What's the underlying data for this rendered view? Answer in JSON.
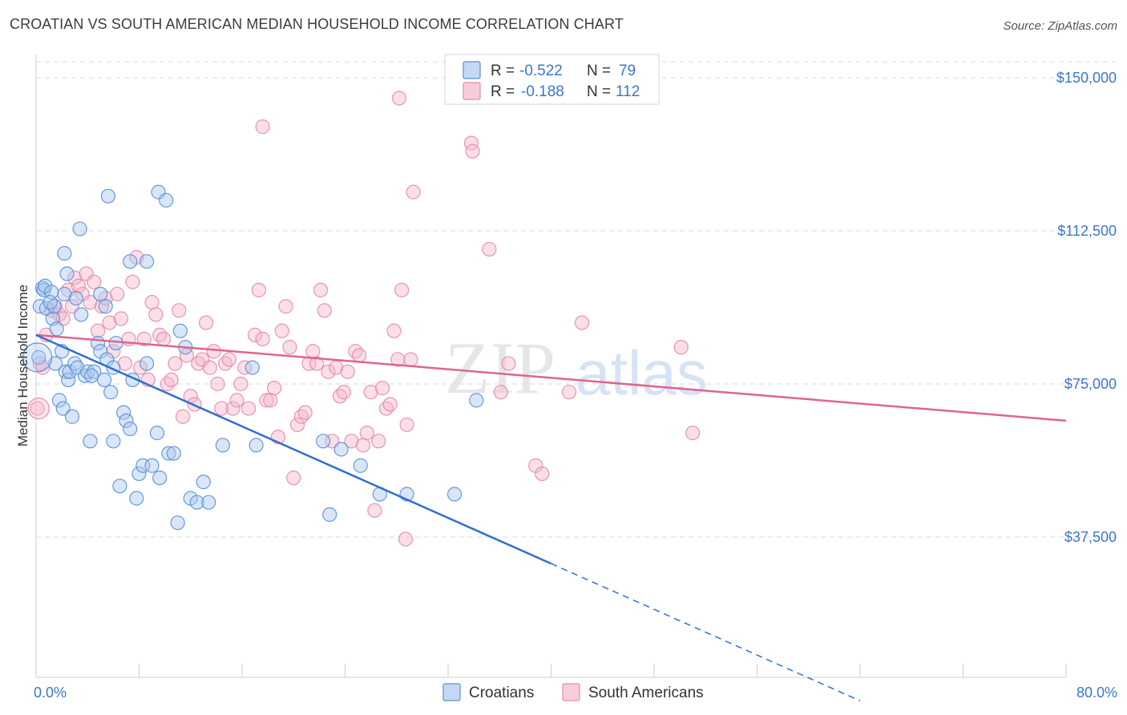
{
  "title": "CROATIAN VS SOUTH AMERICAN MEDIAN HOUSEHOLD INCOME CORRELATION CHART",
  "source": "Source: ZipAtlas.com",
  "watermark": {
    "zip": "ZIP",
    "atlas": "atlas"
  },
  "colors": {
    "croatians_fill": "#a9c8f0",
    "croatians_stroke": "#5a8fd6",
    "croatians_line": "#2f6fd0",
    "south_fill": "#f5b8cc",
    "south_stroke": "#e48aa8",
    "south_line": "#e0648f",
    "tick_text": "#3a78c9",
    "grid": "#d9d9d9"
  },
  "legend_top": {
    "r_label": "R =",
    "n_label": "N =",
    "rows": [
      {
        "r": "-0.522",
        "n": "79"
      },
      {
        "r": "-0.188",
        "n": "112"
      }
    ]
  },
  "chart_data": {
    "type": "scatter",
    "title": "CROATIAN VS SOUTH AMERICAN MEDIAN HOUSEHOLD INCOME CORRELATION CHART",
    "xlabel": "",
    "ylabel": "Median Household Income",
    "xlim": [
      0,
      80
    ],
    "ylim": [
      0,
      155000
    ],
    "x_tick_labels": [
      "0.0%",
      "80.0%"
    ],
    "y_ticks": [
      37500,
      75000,
      112500,
      150000
    ],
    "y_tick_labels": [
      "$37,500",
      "$75,000",
      "$112,500",
      "$150,000"
    ],
    "grid": true,
    "legend_position": "top-center",
    "series": [
      {
        "name": "Croatians",
        "r": -0.522,
        "n": 79,
        "trend": {
          "x0": 0,
          "y0": 87000,
          "x1": 40,
          "y1": 31000,
          "dash_to_x": 64,
          "dash_to_y": -2600
        },
        "points": [
          [
            0.2,
            81500
          ],
          [
            0.3,
            94000
          ],
          [
            0.5,
            98500
          ],
          [
            0.6,
            98000
          ],
          [
            0.7,
            99000
          ],
          [
            0.8,
            93500
          ],
          [
            1.2,
            97500
          ],
          [
            1.3,
            91000
          ],
          [
            1.5,
            80000
          ],
          [
            1.6,
            88500
          ],
          [
            1.8,
            71000
          ],
          [
            2.0,
            83000
          ],
          [
            2.1,
            69000
          ],
          [
            2.3,
            78000
          ],
          [
            2.5,
            76000
          ],
          [
            2.6,
            78000
          ],
          [
            2.8,
            67000
          ],
          [
            3.0,
            80000
          ],
          [
            3.2,
            79000
          ],
          [
            3.5,
            92000
          ],
          [
            3.8,
            77000
          ],
          [
            4.0,
            78000
          ],
          [
            4.2,
            61000
          ],
          [
            4.5,
            78000
          ],
          [
            4.8,
            85000
          ],
          [
            5.0,
            83000
          ],
          [
            5.3,
            76000
          ],
          [
            5.5,
            81000
          ],
          [
            5.8,
            73000
          ],
          [
            6.0,
            61000
          ],
          [
            6.2,
            85000
          ],
          [
            6.5,
            50000
          ],
          [
            6.8,
            68000
          ],
          [
            7.0,
            66000
          ],
          [
            7.3,
            64000
          ],
          [
            7.5,
            76000
          ],
          [
            7.8,
            47000
          ],
          [
            8.0,
            53000
          ],
          [
            8.3,
            55000
          ],
          [
            8.6,
            80000
          ],
          [
            9.0,
            55000
          ],
          [
            9.4,
            63000
          ],
          [
            9.6,
            52000
          ],
          [
            10.3,
            58000
          ],
          [
            10.7,
            58000
          ],
          [
            11.0,
            41000
          ],
          [
            11.2,
            88000
          ],
          [
            11.6,
            84000
          ],
          [
            12.0,
            47000
          ],
          [
            12.5,
            46000
          ],
          [
            13.0,
            51000
          ],
          [
            13.4,
            46000
          ],
          [
            14.5,
            60000
          ],
          [
            16.8,
            79000
          ],
          [
            17.1,
            60000
          ],
          [
            22.3,
            61000
          ],
          [
            22.8,
            43000
          ],
          [
            23.7,
            59000
          ],
          [
            25.2,
            55000
          ],
          [
            26.7,
            48000
          ],
          [
            28.8,
            48000
          ],
          [
            32.5,
            48000
          ],
          [
            34.2,
            71000
          ],
          [
            7.3,
            105000
          ],
          [
            8.6,
            105000
          ],
          [
            9.5,
            122000
          ],
          [
            10.1,
            120000
          ],
          [
            5.6,
            121000
          ],
          [
            3.4,
            113000
          ],
          [
            2.2,
            107000
          ],
          [
            2.4,
            102000
          ],
          [
            5.0,
            97000
          ],
          [
            3.1,
            96000
          ],
          [
            5.4,
            94000
          ],
          [
            1.4,
            94000
          ],
          [
            2.2,
            97000
          ],
          [
            1.1,
            95000
          ],
          [
            6.0,
            79000
          ],
          [
            4.3,
            77000
          ]
        ]
      },
      {
        "name": "South Americans",
        "r": -0.188,
        "n": 112,
        "trend": {
          "x0": 0,
          "y0": 87000,
          "x1": 80,
          "y1": 66000
        },
        "points": [
          [
            0.1,
            69000
          ],
          [
            0.3,
            80000
          ],
          [
            0.5,
            79000
          ],
          [
            0.8,
            87000
          ],
          [
            1.2,
            93000
          ],
          [
            1.5,
            94000
          ],
          [
            1.8,
            92000
          ],
          [
            2.1,
            91000
          ],
          [
            2.5,
            98000
          ],
          [
            2.8,
            94000
          ],
          [
            3.0,
            101000
          ],
          [
            3.3,
            99000
          ],
          [
            3.6,
            97000
          ],
          [
            3.9,
            102000
          ],
          [
            4.2,
            95000
          ],
          [
            4.5,
            100000
          ],
          [
            4.8,
            88000
          ],
          [
            5.1,
            94000
          ],
          [
            5.4,
            96000
          ],
          [
            5.7,
            90000
          ],
          [
            6.0,
            83000
          ],
          [
            6.3,
            97000
          ],
          [
            6.6,
            91000
          ],
          [
            6.9,
            80000
          ],
          [
            7.2,
            86000
          ],
          [
            7.5,
            100000
          ],
          [
            7.8,
            106000
          ],
          [
            8.1,
            79000
          ],
          [
            8.4,
            86000
          ],
          [
            8.7,
            76000
          ],
          [
            9.0,
            95000
          ],
          [
            9.3,
            92000
          ],
          [
            9.6,
            87000
          ],
          [
            9.9,
            86000
          ],
          [
            10.2,
            75000
          ],
          [
            10.5,
            76000
          ],
          [
            10.8,
            80000
          ],
          [
            11.1,
            93000
          ],
          [
            11.4,
            67000
          ],
          [
            11.7,
            82000
          ],
          [
            12.0,
            72000
          ],
          [
            12.3,
            70000
          ],
          [
            12.6,
            80000
          ],
          [
            12.9,
            81000
          ],
          [
            13.2,
            90000
          ],
          [
            13.5,
            79000
          ],
          [
            13.8,
            83000
          ],
          [
            14.1,
            75000
          ],
          [
            14.4,
            69000
          ],
          [
            14.7,
            80000
          ],
          [
            15.0,
            81000
          ],
          [
            15.3,
            69000
          ],
          [
            15.6,
            71000
          ],
          [
            15.9,
            75000
          ],
          [
            16.2,
            79000
          ],
          [
            16.5,
            69000
          ],
          [
            17.0,
            87000
          ],
          [
            17.3,
            98000
          ],
          [
            17.6,
            86000
          ],
          [
            17.9,
            71000
          ],
          [
            18.2,
            71000
          ],
          [
            18.5,
            74000
          ],
          [
            18.8,
            62000
          ],
          [
            19.1,
            88000
          ],
          [
            19.4,
            94000
          ],
          [
            19.7,
            84000
          ],
          [
            20.0,
            52000
          ],
          [
            20.3,
            65000
          ],
          [
            20.6,
            67000
          ],
          [
            20.9,
            68000
          ],
          [
            21.2,
            80000
          ],
          [
            21.5,
            83000
          ],
          [
            21.8,
            80000
          ],
          [
            22.1,
            98000
          ],
          [
            22.4,
            93000
          ],
          [
            22.7,
            78000
          ],
          [
            23.0,
            61000
          ],
          [
            23.3,
            79000
          ],
          [
            23.6,
            72000
          ],
          [
            23.9,
            73000
          ],
          [
            24.2,
            78000
          ],
          [
            24.5,
            61000
          ],
          [
            24.8,
            83000
          ],
          [
            25.1,
            82000
          ],
          [
            25.4,
            60000
          ],
          [
            25.7,
            63000
          ],
          [
            26.0,
            73000
          ],
          [
            26.3,
            44000
          ],
          [
            26.6,
            61000
          ],
          [
            26.9,
            74000
          ],
          [
            27.2,
            69000
          ],
          [
            27.5,
            70000
          ],
          [
            27.8,
            88000
          ],
          [
            28.1,
            81000
          ],
          [
            28.4,
            98000
          ],
          [
            28.7,
            37000
          ],
          [
            29.1,
            81000
          ],
          [
            28.8,
            65000
          ],
          [
            17.6,
            138000
          ],
          [
            28.2,
            145000
          ],
          [
            29.3,
            122000
          ],
          [
            33.8,
            134000
          ],
          [
            33.9,
            132000
          ],
          [
            35.2,
            108000
          ],
          [
            36.7,
            80000
          ],
          [
            36.1,
            73000
          ],
          [
            38.8,
            55000
          ],
          [
            39.3,
            53000
          ],
          [
            41.4,
            73000
          ],
          [
            42.4,
            90000
          ],
          [
            50.1,
            84000
          ],
          [
            51.0,
            63000
          ]
        ]
      }
    ]
  }
}
